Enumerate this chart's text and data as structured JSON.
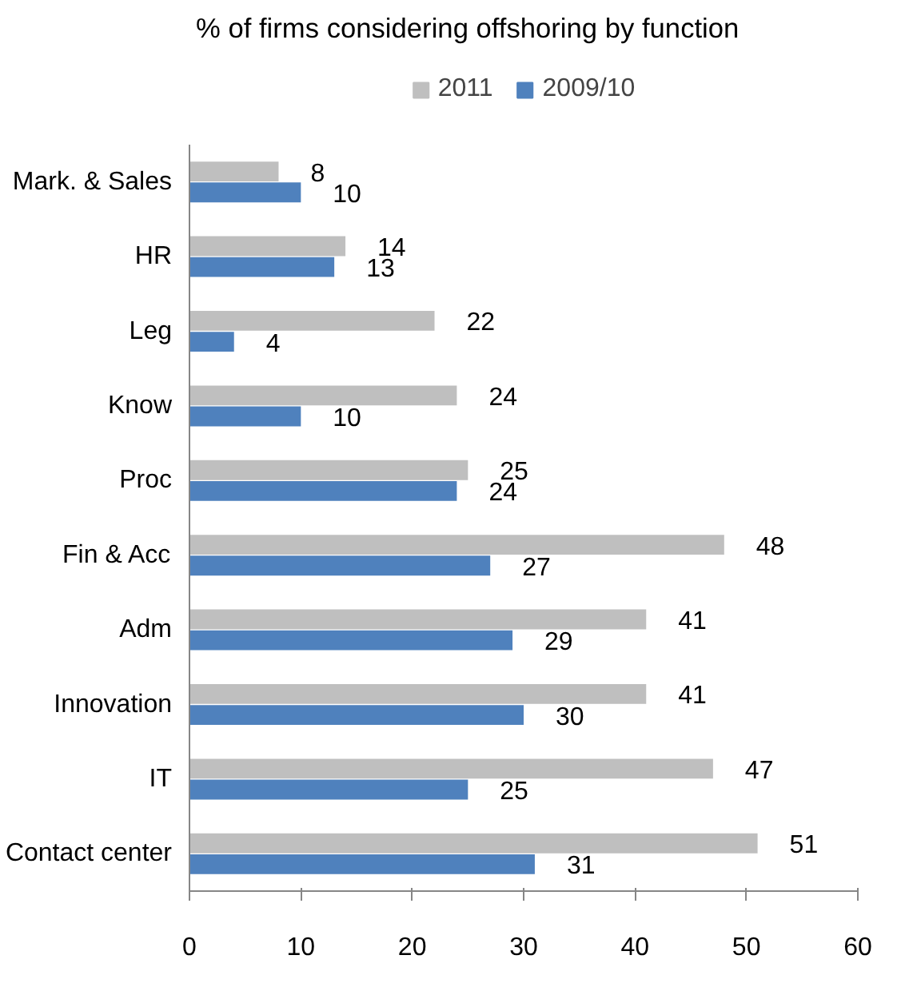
{
  "chart_data": {
    "type": "bar",
    "orientation": "horizontal",
    "title": "% of firms considering offshoring by function",
    "categories": [
      "Mark. & Sales",
      "HR",
      "Leg",
      "Know",
      "Proc",
      "Fin & Acc",
      "Adm",
      "Innovation",
      "IT",
      "Contact center"
    ],
    "series": [
      {
        "name": "2011",
        "color": "#bfbfbf",
        "values": [
          8,
          14,
          22,
          24,
          25,
          48,
          41,
          41,
          47,
          51
        ]
      },
      {
        "name": "2009/10",
        "color": "#4f81bd",
        "values": [
          10,
          13,
          4,
          10,
          24,
          27,
          29,
          30,
          25,
          31
        ]
      }
    ],
    "xlim": [
      0,
      60
    ],
    "xticks": [
      0,
      10,
      20,
      30,
      40,
      50,
      60
    ],
    "data_labels": true,
    "legend": "top",
    "grid": false
  }
}
